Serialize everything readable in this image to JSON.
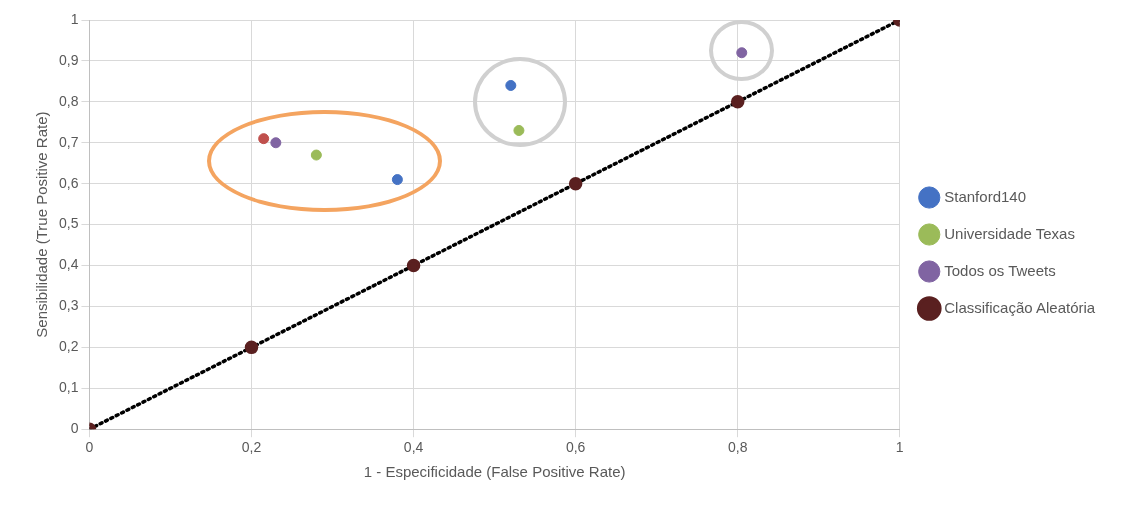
{
  "chart_data": {
    "type": "scatter",
    "xlabel": "1 - Especificidade (False Positive Rate)",
    "ylabel": "Sensibilidade (True Positive Rate)",
    "xlim": [
      0,
      1
    ],
    "ylim": [
      0,
      1
    ],
    "xticks": [
      0,
      {
        "value": 0.2,
        "label": "0,2"
      },
      {
        "value": 0.4,
        "label": "0,4"
      },
      {
        "value": 0.6,
        "label": "0,6"
      },
      {
        "value": 0.8,
        "label": "0,8"
      },
      1
    ],
    "yticks": [
      0,
      {
        "value": 0.1,
        "label": "0,1"
      },
      {
        "value": 0.2,
        "label": "0,2"
      },
      {
        "value": 0.3,
        "label": "0,3"
      },
      {
        "value": 0.4,
        "label": "0,4"
      },
      {
        "value": 0.5,
        "label": "0,5"
      },
      {
        "value": 0.6,
        "label": "0,6"
      },
      {
        "value": 0.7,
        "label": "0,7"
      },
      {
        "value": 0.8,
        "label": "0,8"
      },
      {
        "value": 0.9,
        "label": "0,9"
      },
      1
    ],
    "grid": true,
    "legend": "right",
    "marker": "circle",
    "series": [
      {
        "name": "Stanford140",
        "color": "#4472c4",
        "x": [
          0.38,
          0.52
        ],
        "values": [
          0.61,
          0.84
        ]
      },
      {
        "color": "#c0504d",
        "x": [
          0.215
        ],
        "values": [
          0.71
        ]
      },
      {
        "name": "Universidade Texas",
        "color": "#9bbb59",
        "x": [
          0.28,
          0.53
        ],
        "values": [
          0.67,
          0.73
        ]
      },
      {
        "name": "Todos os Tweets",
        "color": "#8064a2",
        "x": [
          0.23,
          0.805
        ],
        "values": [
          0.7,
          0.92
        ]
      },
      {
        "name": "Classificação Aleatória",
        "type": "line",
        "line_style": "dotted",
        "color": "#000000",
        "x": [
          0,
          0.2,
          0.4,
          0.6,
          0.8,
          1
        ],
        "values": [
          0,
          0.2,
          0.4,
          0.6,
          0.8,
          1
        ]
      }
    ]
  }
}
